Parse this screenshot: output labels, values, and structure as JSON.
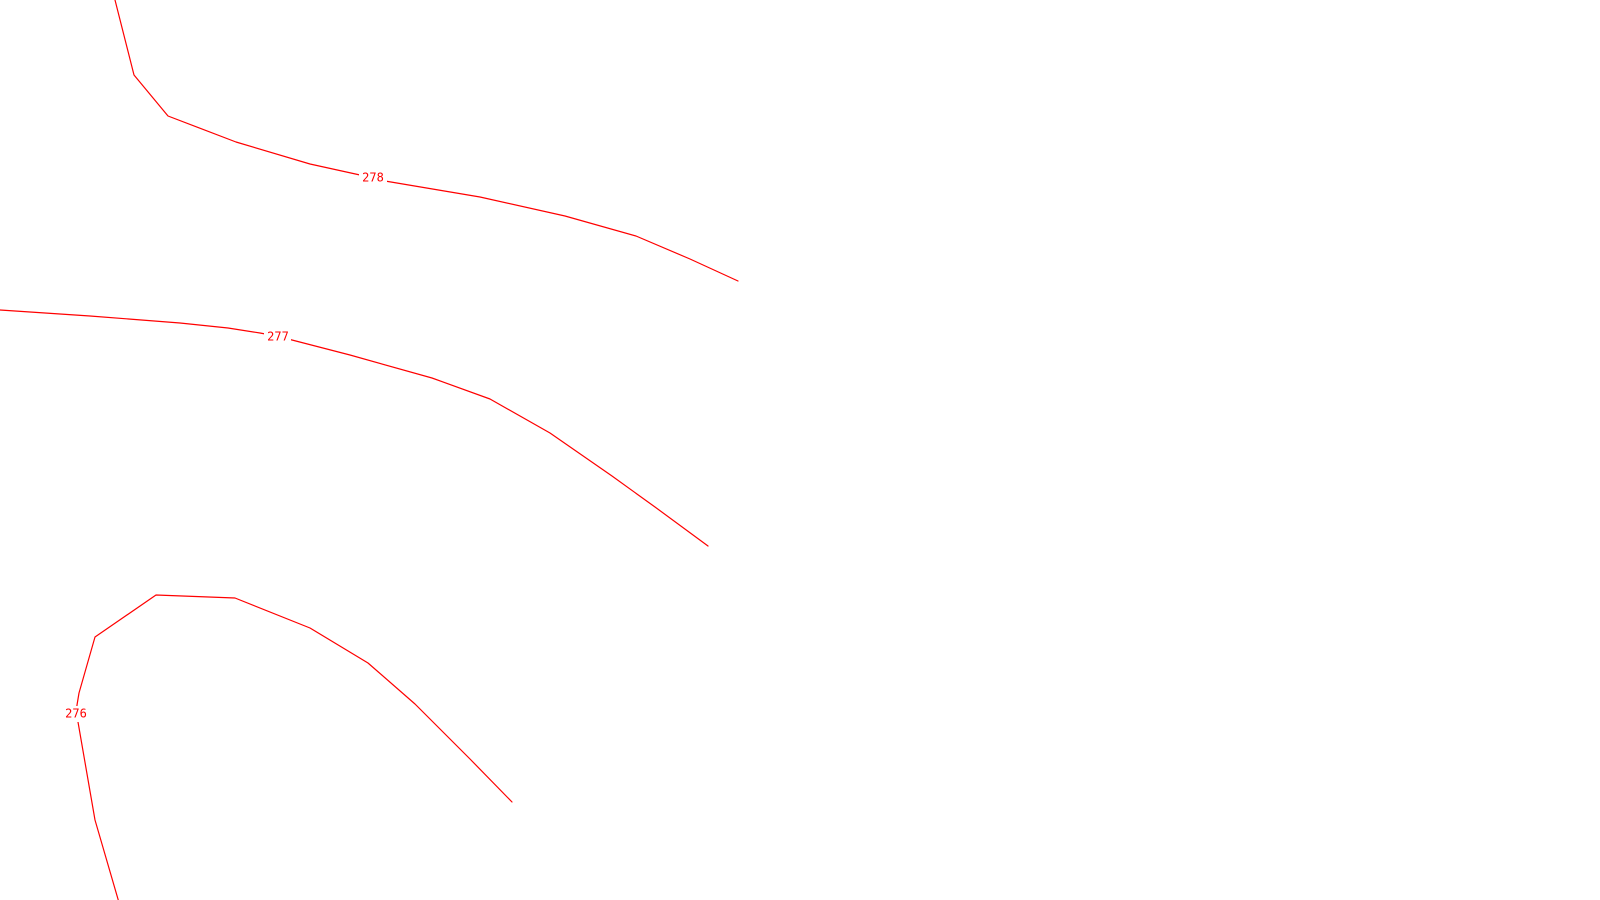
{
  "map": {
    "background_color": "#ffffff",
    "contour_color": "#ff0000",
    "contours": [
      {
        "elevation": "278"
      },
      {
        "elevation": "277"
      },
      {
        "elevation": "276"
      }
    ]
  }
}
